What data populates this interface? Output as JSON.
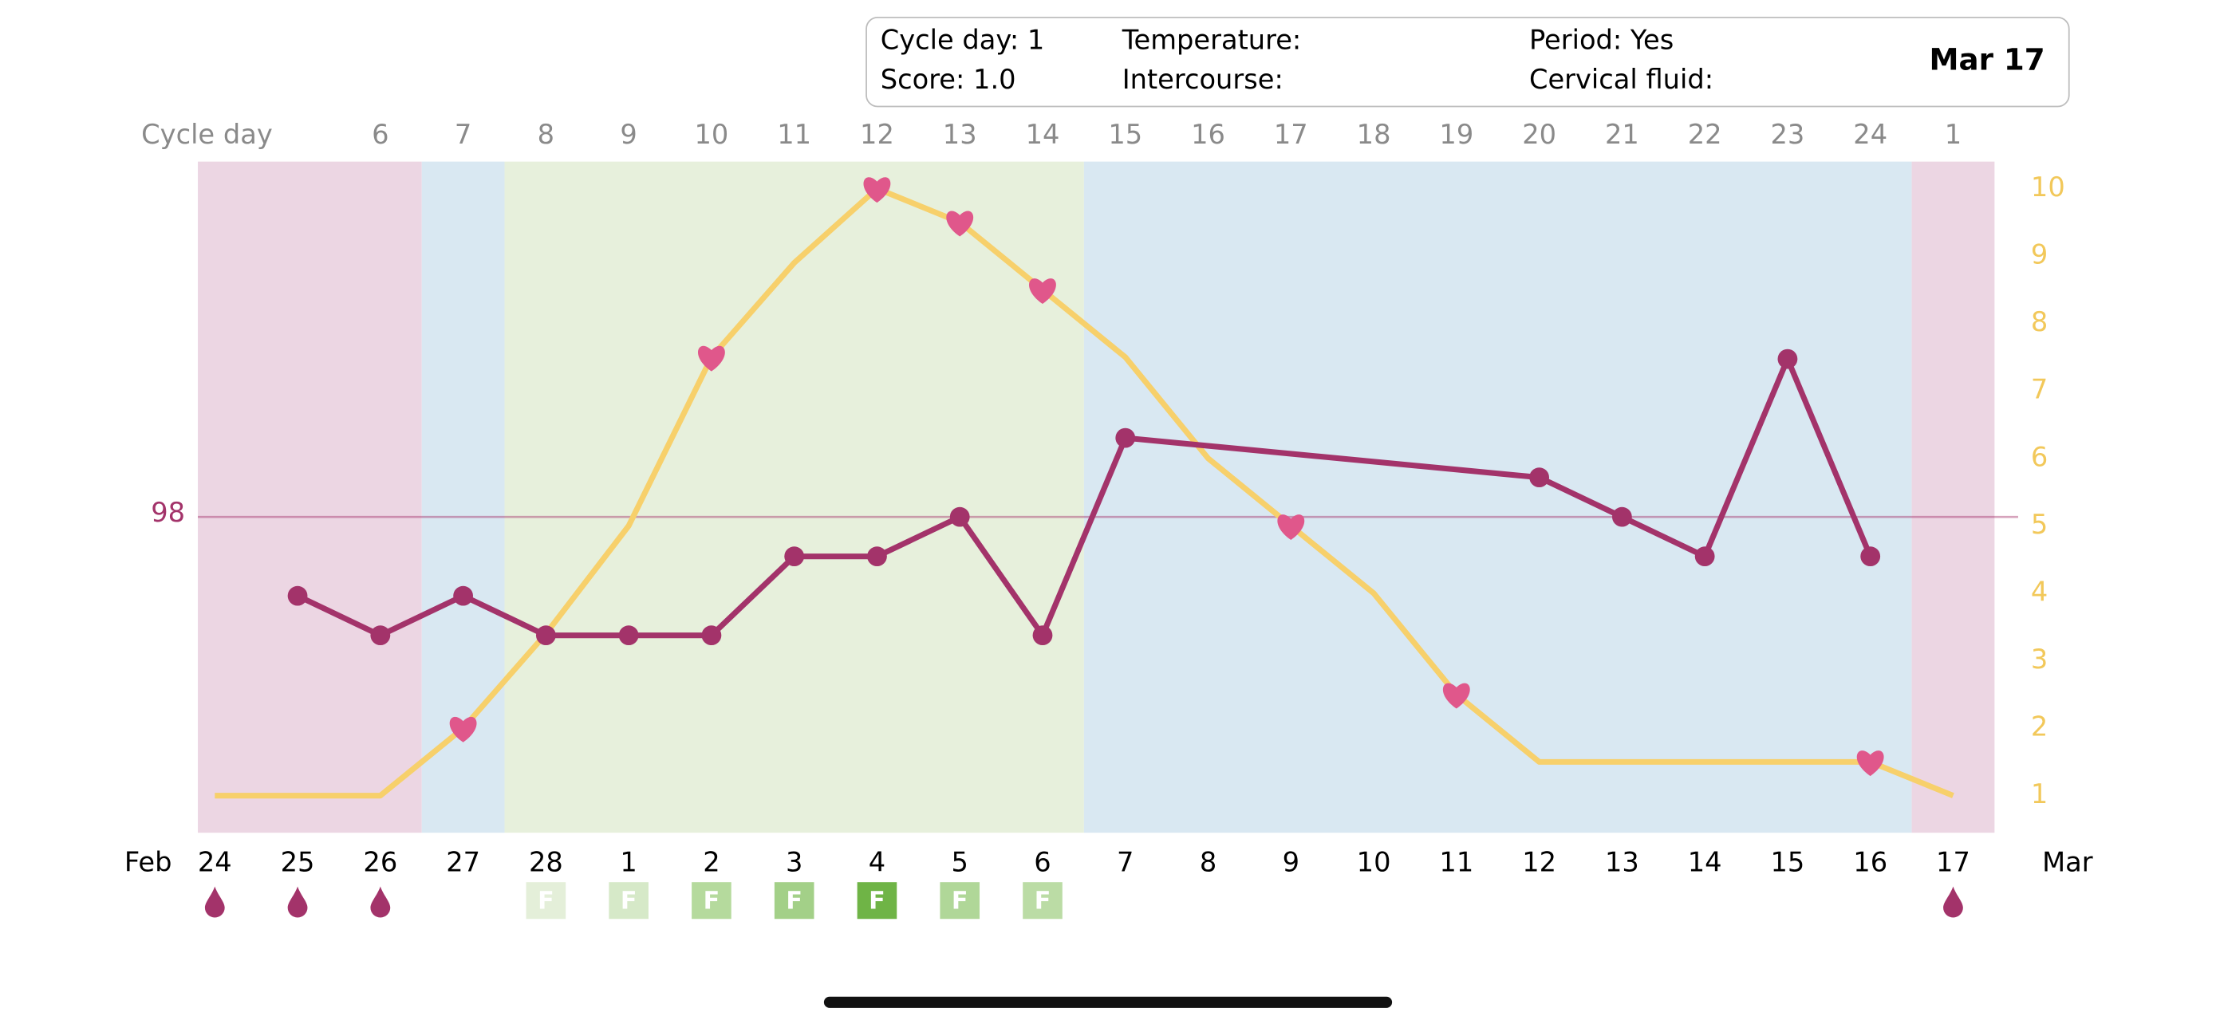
{
  "info": {
    "cycle_day": "Cycle day: 1",
    "score": "Score: 1.0",
    "temperature": "Temperature:",
    "intercourse": "Intercourse:",
    "period": "Period: Yes",
    "cervical_fluid": "Cervical fluid:",
    "date": "Mar 17"
  },
  "chart_data": {
    "type": "line",
    "cycle_day_label": "Cycle day",
    "months": [
      "Feb",
      "Mar"
    ],
    "categories": [
      "24",
      "25",
      "26",
      "27",
      "28",
      "1",
      "2",
      "3",
      "4",
      "5",
      "6",
      "7",
      "8",
      "9",
      "10",
      "11",
      "12",
      "13",
      "14",
      "15",
      "16",
      "17"
    ],
    "cycle_days": [
      null,
      null,
      6,
      7,
      8,
      9,
      10,
      11,
      12,
      13,
      14,
      15,
      16,
      17,
      18,
      19,
      20,
      21,
      22,
      23,
      24,
      1
    ],
    "temperature": {
      "color": "#a3336a",
      "categories": [
        "25",
        "26",
        "27",
        "28",
        "1",
        "2",
        "3",
        "4",
        "5",
        "6",
        "7",
        "12",
        "13",
        "14",
        "15",
        "16"
      ],
      "values": [
        97.8,
        97.7,
        97.8,
        97.7,
        97.7,
        97.7,
        97.9,
        97.9,
        98.0,
        97.7,
        98.2,
        98.1,
        98.0,
        97.9,
        98.4,
        97.9
      ]
    },
    "score": {
      "color": "#f7d06b",
      "axis": "y2",
      "values": [
        1,
        1,
        1,
        2,
        3.4,
        5,
        7.5,
        8.9,
        10,
        9.5,
        8.5,
        7.5,
        6,
        5,
        4,
        2.5,
        1.5,
        1.5,
        1.5,
        1.5,
        1.5,
        1
      ]
    },
    "ylim": [
      97.2,
      98.9
    ],
    "yticks": [
      98
    ],
    "ycolor": "#a3336a",
    "y2lim": [
      0.45,
      10.4
    ],
    "y2ticks": [
      1,
      2,
      3,
      4,
      5,
      6,
      7,
      8,
      9,
      10
    ],
    "y2color": "#f2c85a",
    "phases": [
      {
        "days": [
          "24",
          "26"
        ],
        "color": "#ecd6e3"
      },
      {
        "days": [
          "27",
          "27"
        ],
        "color": "#d9e8f2"
      },
      {
        "days": [
          "28",
          "6"
        ],
        "color": "#e7f0dc"
      },
      {
        "days": [
          "7",
          "16"
        ],
        "color": "#d9e8f2"
      },
      {
        "days": [
          "17",
          "17"
        ],
        "color": "#ecd6e3"
      }
    ],
    "intercourse_days": [
      "27",
      "2",
      "4",
      "5",
      "6",
      "9",
      "11",
      "16"
    ],
    "heart_color": "#e0578b",
    "period_days": [
      "24",
      "25",
      "26",
      "17"
    ],
    "drop_color": "#a3336a",
    "cervical_fluid": [
      {
        "day": "28",
        "label": "F",
        "color": "#e4efd9"
      },
      {
        "day": "1",
        "label": "F",
        "color": "#d6e9c8"
      },
      {
        "day": "2",
        "label": "F",
        "color": "#b5da9d"
      },
      {
        "day": "3",
        "label": "F",
        "color": "#a3d088"
      },
      {
        "day": "4",
        "label": "F",
        "color": "#6fb446"
      },
      {
        "day": "5",
        "label": "F",
        "color": "#b0d798"
      },
      {
        "day": "6",
        "label": "F",
        "color": "#bbdca5"
      }
    ]
  }
}
